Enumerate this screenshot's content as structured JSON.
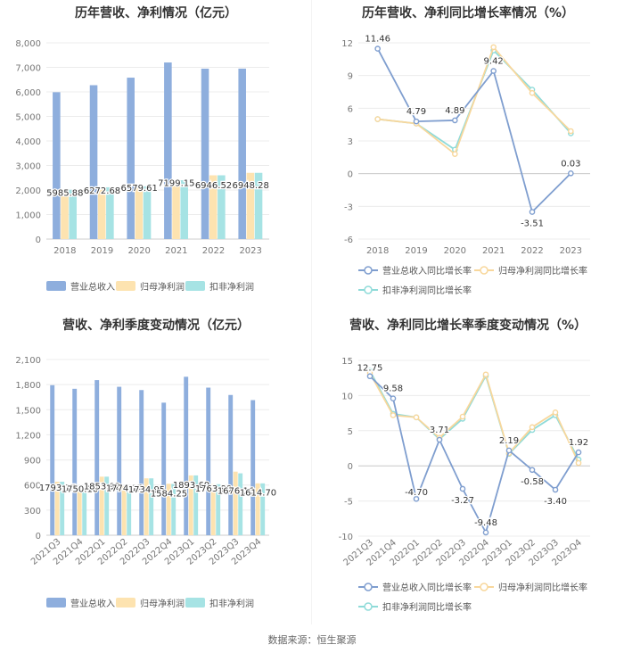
{
  "footer": "数据来源：恒生聚源",
  "colors": {
    "revenue": "#8eaedd",
    "net_profit": "#fde3b0",
    "deducted_profit": "#a6e3e4",
    "revenue_line": "#7f9ecf",
    "net_profit_line": "#f8d79c",
    "deducted_line": "#8fdbd9"
  },
  "chart_data": [
    {
      "id": "p1",
      "type": "bar",
      "title": "历年营收、净利情况（亿元）",
      "categories": [
        "2018",
        "2019",
        "2020",
        "2021",
        "2022",
        "2023"
      ],
      "series": [
        {
          "name": "营业总收入",
          "values": [
            5985.88,
            6272.68,
            6579.61,
            7199.15,
            6946.52,
            6948.28
          ]
        },
        {
          "name": "归母净利润",
          "values": [
            2010,
            2110,
            2150,
            2400,
            2600,
            2700
          ]
        },
        {
          "name": "扣非净利润",
          "values": [
            2010,
            2110,
            2150,
            2400,
            2600,
            2700
          ]
        }
      ],
      "data_labels": [
        "5985.88",
        "6272.68",
        "6579.61",
        "7199.15",
        "6946.52",
        "6948.28"
      ],
      "ylim": [
        0,
        8000
      ],
      "yticks": [
        "0",
        "1,000",
        "2,000",
        "3,000",
        "4,000",
        "5,000",
        "6,000",
        "7,000",
        "8,000"
      ],
      "legend": [
        "营业总收入",
        "归母净利润",
        "扣非净利润"
      ]
    },
    {
      "id": "p2",
      "type": "line",
      "title": "历年营收、净利同比增长率情况（%）",
      "categories": [
        "2018",
        "2019",
        "2020",
        "2021",
        "2022",
        "2023"
      ],
      "series": [
        {
          "name": "营业总收入同比增长率",
          "values": [
            11.46,
            4.79,
            4.89,
            9.42,
            -3.51,
            0.03
          ]
        },
        {
          "name": "归母净利润同比增长率",
          "values": [
            5.0,
            4.6,
            1.8,
            11.6,
            7.4,
            3.9
          ]
        },
        {
          "name": "扣非净利润同比增长率",
          "values": [
            5.0,
            4.6,
            2.2,
            11.3,
            7.7,
            3.7
          ]
        }
      ],
      "data_labels": [
        "11.46",
        "4.79",
        "4.89",
        "9.42",
        "-3.51",
        "0.03"
      ],
      "ylim": [
        -6,
        12
      ],
      "yticks": [
        "-6",
        "-3",
        "0",
        "3",
        "6",
        "9",
        "12"
      ],
      "legend": [
        "营业总收入同比增长率",
        "归母净利润同比增长率",
        "扣非净利润同比增长率"
      ]
    },
    {
      "id": "p3",
      "type": "bar",
      "title": "营收、净利季度变动情况（亿元）",
      "categories": [
        "2021Q3",
        "2021Q4",
        "2022Q1",
        "2022Q2",
        "2022Q3",
        "2022Q4",
        "2023Q1",
        "2023Q2",
        "2023Q3",
        "2023Q4"
      ],
      "series": [
        {
          "name": "营业总收入",
          "values": [
            1793.17,
            1750.1,
            1853.92,
            1774.17,
            1734.95,
            1584.25,
            1893.6,
            1763.9,
            1676.16,
            1614.7
          ]
        },
        {
          "name": "归母净利润",
          "values": [
            640,
            545,
            700,
            585,
            680,
            615,
            715,
            610,
            760,
            620
          ]
        },
        {
          "name": "扣非净利润",
          "values": [
            640,
            545,
            700,
            585,
            680,
            615,
            715,
            610,
            740,
            620
          ]
        }
      ],
      "data_labels": [
        "1793.17",
        "1750.10",
        "1853.92",
        "1774.17",
        "1734.95",
        "1584.25",
        "1893.60",
        "1763.90",
        "1676.16",
        "1614.70"
      ],
      "ylim": [
        0,
        2100
      ],
      "yticks": [
        "0",
        "300",
        "600",
        "900",
        "1,200",
        "1,500",
        "1,800",
        "2,100"
      ],
      "legend": [
        "营业总收入",
        "归母净利润",
        "扣非净利润"
      ]
    },
    {
      "id": "p4",
      "type": "line",
      "title": "营收、净利同比增长率季度变动情况（%）",
      "categories": [
        "2021Q3",
        "2021Q4",
        "2022Q1",
        "2022Q2",
        "2022Q3",
        "2022Q4",
        "2023Q1",
        "2023Q2",
        "2023Q3",
        "2023Q4"
      ],
      "series": [
        {
          "name": "营业总收入同比增长率",
          "values": [
            12.75,
            9.58,
            -4.7,
            3.71,
            -3.27,
            -9.48,
            2.19,
            -0.58,
            -3.4,
            1.92
          ]
        },
        {
          "name": "归母净利润同比增长率",
          "values": [
            13.2,
            7.2,
            6.9,
            4.0,
            7.0,
            13.0,
            1.8,
            5.5,
            7.6,
            0.4
          ]
        },
        {
          "name": "扣非净利润同比增长率",
          "values": [
            13.5,
            7.4,
            6.9,
            3.8,
            6.7,
            12.8,
            1.7,
            5.1,
            7.2,
            0.9
          ]
        }
      ],
      "data_labels": [
        "12.75",
        "9.58",
        "-4.70",
        "3.71",
        "-3.27",
        "-9.48",
        "2.19",
        "-0.58",
        "-3.40",
        "1.92"
      ],
      "ylim": [
        -10,
        15
      ],
      "yticks": [
        "-10",
        "-5",
        "0",
        "5",
        "10",
        "15"
      ],
      "legend": [
        "营业总收入同比增长率",
        "归母净利润同比增长率",
        "扣非净利润同比增长率"
      ]
    }
  ]
}
